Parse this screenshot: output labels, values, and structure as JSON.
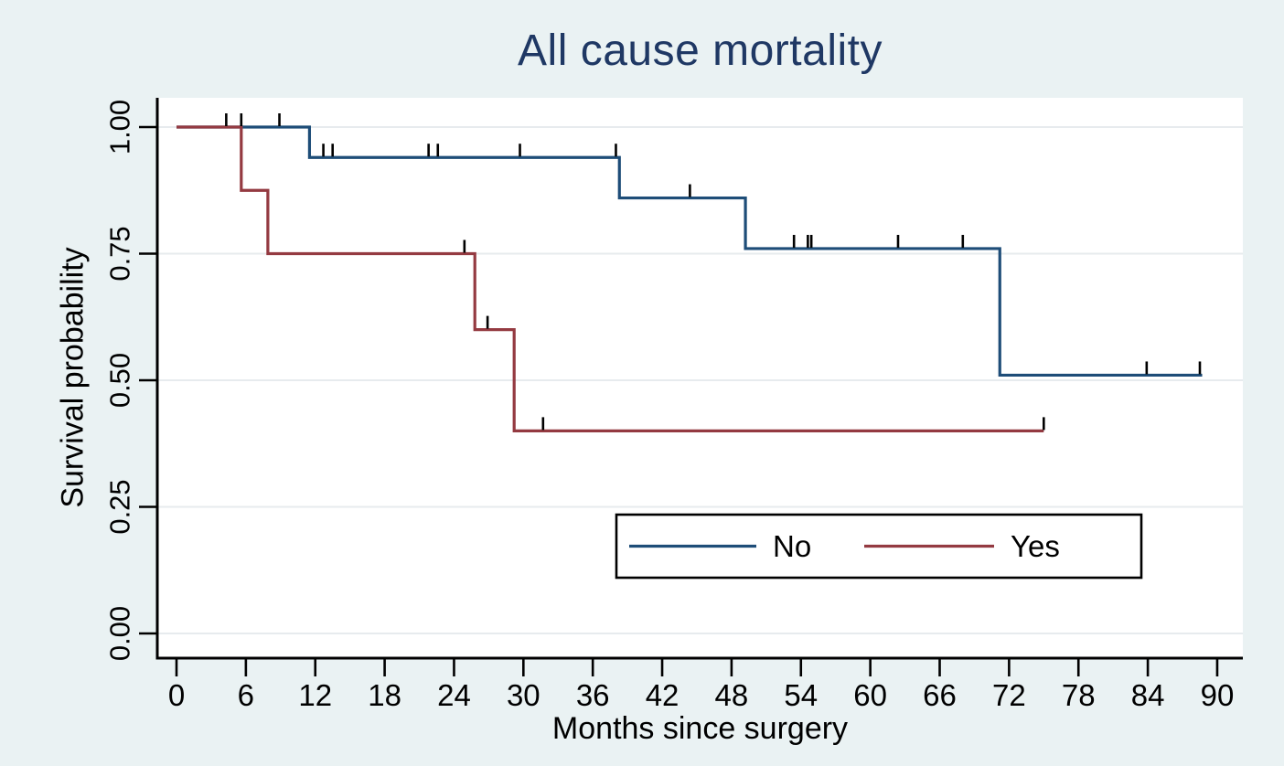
{
  "figure": {
    "title": "All cause mortality",
    "title_color": "#1f3864",
    "background_color": "#eaf2f3",
    "plot_background_color": "#ffffff",
    "axis_color": "#000000"
  },
  "chart_data": {
    "type": "line",
    "subtype": "kaplan_meier_step",
    "title": "All cause mortality",
    "xlabel": "Months since surgery",
    "ylabel": "Survival probability",
    "xlim": [
      0,
      92
    ],
    "ylim": [
      0,
      1
    ],
    "xticks": [
      0,
      6,
      12,
      18,
      24,
      30,
      36,
      42,
      48,
      54,
      60,
      66,
      72,
      78,
      84,
      90
    ],
    "xtick_labels": [
      "0",
      "6",
      "12",
      "18",
      "24",
      "30",
      "36",
      "42",
      "48",
      "54",
      "60",
      "66",
      "72",
      "78",
      "84",
      "90"
    ],
    "yticks": [
      0,
      0.25,
      0.5,
      0.75,
      1.0
    ],
    "ytick_labels": [
      "0.00",
      "0.25",
      "0.50",
      "0.75",
      "1.00"
    ],
    "grid": "horizontal-only",
    "gridline_color": "#e7ebee",
    "censor_color": "#000000",
    "legend": {
      "position": "inside-lower-right",
      "entries": [
        {
          "label": "No",
          "color": "#1e4d78"
        },
        {
          "label": "Yes",
          "color": "#943a41"
        }
      ]
    },
    "series": [
      {
        "name": "No",
        "color": "#1e4d78",
        "steps": [
          [
            0,
            1.0
          ],
          [
            11.5,
            0.94
          ],
          [
            38.3,
            0.86
          ],
          [
            49.2,
            0.76
          ],
          [
            71.2,
            0.51
          ]
        ],
        "end_x": 88.7,
        "censors": [
          [
            4.3,
            1.0
          ],
          [
            5.6,
            1.0
          ],
          [
            8.9,
            1.0
          ],
          [
            12.7,
            0.94
          ],
          [
            13.5,
            0.94
          ],
          [
            21.8,
            0.94
          ],
          [
            22.6,
            0.94
          ],
          [
            29.7,
            0.94
          ],
          [
            38.0,
            0.94
          ],
          [
            44.4,
            0.86
          ],
          [
            53.4,
            0.76
          ],
          [
            54.6,
            0.76
          ],
          [
            54.9,
            0.76
          ],
          [
            62.4,
            0.76
          ],
          [
            68.0,
            0.76
          ],
          [
            83.9,
            0.51
          ],
          [
            88.5,
            0.51
          ]
        ]
      },
      {
        "name": "Yes",
        "color": "#943a41",
        "steps": [
          [
            0,
            1.0
          ],
          [
            5.6,
            0.875
          ],
          [
            7.9,
            0.75
          ],
          [
            25.8,
            0.6
          ],
          [
            29.2,
            0.4
          ]
        ],
        "end_x": 75.0,
        "censors": [
          [
            24.9,
            0.75
          ],
          [
            26.9,
            0.6
          ],
          [
            31.7,
            0.4
          ],
          [
            75.0,
            0.4
          ]
        ]
      }
    ]
  }
}
